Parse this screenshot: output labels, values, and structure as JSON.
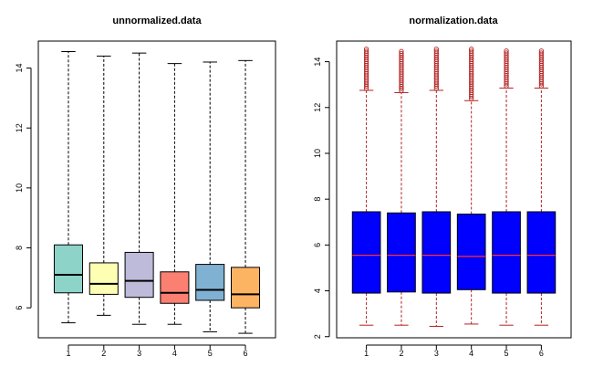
{
  "chart_data": [
    {
      "type": "boxplot",
      "title": "unnormalized.data",
      "xlabel": "",
      "ylabel": "",
      "categories": [
        "1",
        "2",
        "3",
        "4",
        "5",
        "6"
      ],
      "ylim": [
        5.0,
        14.9
      ],
      "yticks": [
        6,
        8,
        10,
        12,
        14
      ],
      "grid": false,
      "outliers": false,
      "box_colors": [
        "#8dd3c7",
        "#ffffb3",
        "#bebada",
        "#fb8072",
        "#80b1d3",
        "#fdb462"
      ],
      "median_color": "#000000",
      "whisker_color": "#000000",
      "boxes": [
        {
          "min": 5.5,
          "q1": 6.5,
          "median": 7.1,
          "q3": 8.1,
          "max": 14.55
        },
        {
          "min": 5.75,
          "q1": 6.45,
          "median": 6.8,
          "q3": 7.5,
          "max": 14.4
        },
        {
          "min": 5.45,
          "q1": 6.35,
          "median": 6.9,
          "q3": 7.85,
          "max": 14.5
        },
        {
          "min": 5.45,
          "q1": 6.15,
          "median": 6.5,
          "q3": 7.2,
          "max": 14.15
        },
        {
          "min": 5.2,
          "q1": 6.25,
          "median": 6.6,
          "q3": 7.45,
          "max": 14.2
        },
        {
          "min": 5.15,
          "q1": 6.0,
          "median": 6.45,
          "q3": 7.35,
          "max": 14.25
        }
      ]
    },
    {
      "type": "boxplot",
      "title": "normalization.data",
      "xlabel": "",
      "ylabel": "",
      "categories": [
        "1",
        "2",
        "3",
        "4",
        "5",
        "6"
      ],
      "ylim": [
        1.95,
        14.9
      ],
      "yticks": [
        2,
        4,
        6,
        8,
        10,
        12,
        14
      ],
      "grid": false,
      "outliers": true,
      "box_colors": [
        "#0000ff",
        "#0000ff",
        "#0000ff",
        "#0000ff",
        "#0000ff",
        "#0000ff"
      ],
      "median_color": "#ff3030",
      "whisker_color": "#b22222",
      "outlier_color": "#b22222",
      "boxes": [
        {
          "min": 2.5,
          "q1": 3.9,
          "median": 5.55,
          "q3": 7.45,
          "max": 12.75,
          "outlier_max": 14.6
        },
        {
          "min": 2.5,
          "q1": 3.95,
          "median": 5.55,
          "q3": 7.4,
          "max": 12.65,
          "outlier_max": 14.45
        },
        {
          "min": 2.45,
          "q1": 3.9,
          "median": 5.55,
          "q3": 7.45,
          "max": 12.75,
          "outlier_max": 14.6
        },
        {
          "min": 2.55,
          "q1": 4.05,
          "median": 5.5,
          "q3": 7.35,
          "max": 12.3,
          "outlier_max": 14.55
        },
        {
          "min": 2.5,
          "q1": 3.9,
          "median": 5.55,
          "q3": 7.45,
          "max": 12.85,
          "outlier_max": 14.5
        },
        {
          "min": 2.5,
          "q1": 3.9,
          "median": 5.55,
          "q3": 7.45,
          "max": 12.85,
          "outlier_max": 14.55
        }
      ]
    }
  ]
}
